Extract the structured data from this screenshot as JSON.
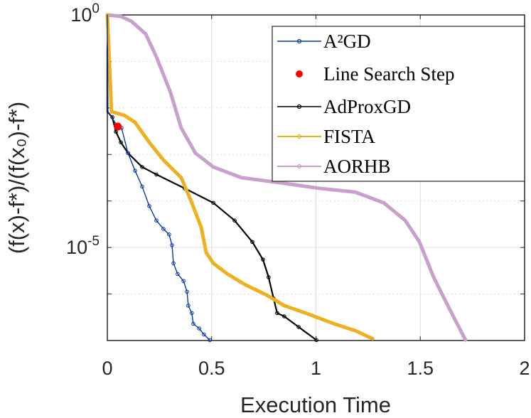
{
  "chart_data": {
    "type": "line",
    "xlabel": "Execution Time",
    "ylabel": "(f(x)-f*)/(f(x₀)-f*)",
    "xlim": [
      0,
      2
    ],
    "ylim_log10": [
      -7,
      0
    ],
    "yscale": "log",
    "grid": true,
    "legend_position": "top-right",
    "xticks": [
      "0",
      "0.5",
      "1",
      "1.5",
      "2"
    ],
    "xtick_values": [
      0,
      0.5,
      1,
      1.5,
      2
    ],
    "yticks": [
      {
        "base": "10",
        "exp": "0",
        "log10": 0
      },
      {
        "base": "10",
        "exp": "-5",
        "log10": -5
      }
    ],
    "series": [
      {
        "name": "A²GD",
        "color": "#0b3aa3",
        "style": "thin-marker",
        "x": [
          0,
          0.003,
          0.05,
          0.068,
          0.099,
          0.133,
          0.167,
          0.201,
          0.235,
          0.269,
          0.296,
          0.31,
          0.317,
          0.337,
          0.365,
          0.382,
          0.388,
          0.405,
          0.412,
          0.44,
          0.463,
          0.491
        ],
        "log10_y": [
          0,
          -2.08,
          -2.4,
          -2.43,
          -2.97,
          -3.35,
          -3.69,
          -4.11,
          -4.42,
          -4.6,
          -4.72,
          -4.95,
          -5.34,
          -5.57,
          -5.72,
          -5.95,
          -6.25,
          -6.41,
          -6.64,
          -6.74,
          -6.87,
          -6.99
        ]
      },
      {
        "name": "Line Search Step",
        "color": "#ff0000",
        "style": "dot",
        "x": [
          0.05
        ],
        "log10_y": [
          -2.4
        ]
      },
      {
        "name": "AdProxGD",
        "color": "#000000",
        "style": "medium-marker",
        "x": [
          0,
          0,
          0.024,
          0.041,
          0.065,
          0.099,
          0.167,
          0.235,
          0.371,
          0.508,
          0.61,
          0.695,
          0.746,
          0.773,
          0.797,
          0.814,
          0.848,
          0.917,
          1.002
        ],
        "log10_y": [
          0,
          -2.08,
          -2.2,
          -2.51,
          -2.74,
          -2.97,
          -3.27,
          -3.43,
          -3.73,
          -4.04,
          -4.42,
          -4.88,
          -5.26,
          -5.64,
          -6.1,
          -6.41,
          -6.48,
          -6.71,
          -6.99
        ]
      },
      {
        "name": "FISTA",
        "color": "#edb120",
        "style": "thick-marker",
        "x": [
          0,
          0.02,
          0.082,
          0.133,
          0.201,
          0.269,
          0.354,
          0.405,
          0.45,
          0.474,
          0.508,
          0.576,
          0.661,
          0.763,
          0.848,
          0.95,
          1.087,
          1.189,
          1.271
        ],
        "log10_y": [
          0,
          -2.08,
          -2.16,
          -2.31,
          -2.74,
          -3.12,
          -3.5,
          -4.04,
          -4.57,
          -5.11,
          -5.34,
          -5.57,
          -5.8,
          -6.02,
          -6.25,
          -6.41,
          -6.64,
          -6.79,
          -6.96
        ]
      },
      {
        "name": "AORHB",
        "color": "#c9a0cc",
        "style": "thick-marker",
        "x": [
          0,
          0.065,
          0.116,
          0.184,
          0.235,
          0.303,
          0.354,
          0.422,
          0.508,
          0.644,
          0.848,
          1.019,
          1.189,
          1.325,
          1.428,
          1.496,
          1.564,
          1.632,
          1.717
        ],
        "log10_y": [
          0,
          -0.03,
          -0.14,
          -0.41,
          -0.9,
          -1.67,
          -2.43,
          -2.97,
          -3.27,
          -3.5,
          -3.62,
          -3.73,
          -3.81,
          -4.04,
          -4.42,
          -4.88,
          -5.64,
          -6.25,
          -6.99
        ]
      }
    ]
  }
}
